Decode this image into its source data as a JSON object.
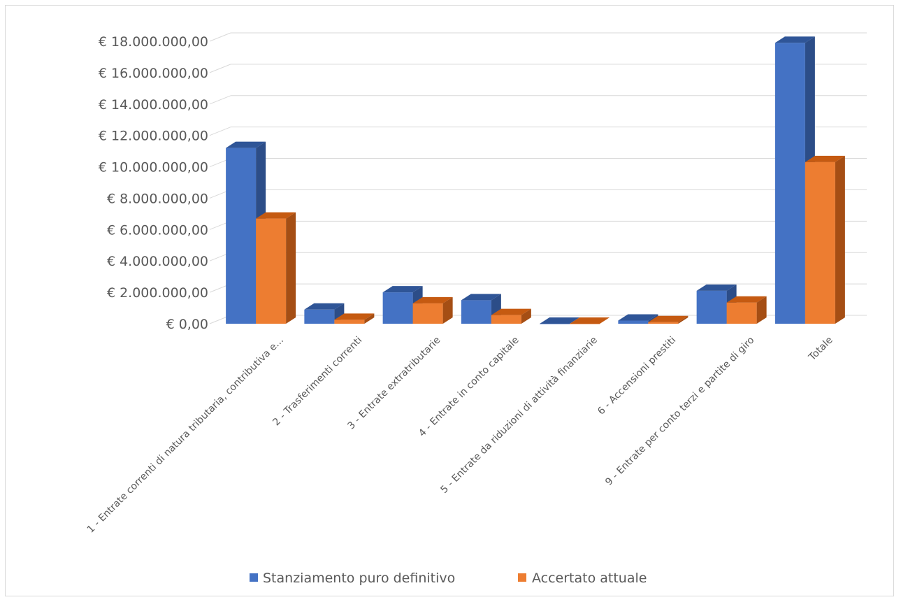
{
  "chart_data": {
    "type": "bar",
    "style": "3d-clustered-column",
    "categories": [
      "1 - Entrate correnti di natura tributaria, contributiva e...",
      "2 - Trasferimenti correnti",
      "3 - Entrate extratributarie",
      "4 - Entrate in conto capitale",
      "5 - Entrate da riduzioni di attività finanziarie",
      "6 - Accensioni prestiti",
      "9 - Entrate per conto terzi e partite di giro",
      "Totale"
    ],
    "series": [
      {
        "name": "Stanziamento puro definitivo",
        "values": [
          11200000,
          900000,
          2000000,
          1500000,
          0,
          200000,
          2100000,
          17900000
        ]
      },
      {
        "name": "Accertato attuale",
        "values": [
          6700000,
          250000,
          1300000,
          550000,
          0,
          100000,
          1350000,
          10300000
        ]
      }
    ],
    "ylim": [
      0,
      18000000
    ],
    "yticks": [
      0,
      2000000,
      4000000,
      6000000,
      8000000,
      10000000,
      12000000,
      14000000,
      16000000,
      18000000
    ],
    "ytick_labels": [
      "€ 0,00",
      "€ 2.000.000,00",
      "€ 4.000.000,00",
      "€ 6.000.000,00",
      "€ 8.000.000,00",
      "€ 10.000.000,00",
      "€ 12.000.000,00",
      "€ 14.000.000,00",
      "€ 16.000.000,00",
      "€ 18.000.000,00"
    ],
    "grid": true,
    "legend_position": "bottom",
    "colors": {
      "series_front": [
        "#4472C4",
        "#ED7D31"
      ],
      "series_top": [
        "#2F5597",
        "#C55A11"
      ],
      "series_side": [
        "#2C4D88",
        "#A54E14"
      ],
      "grid": "#d9d9d9",
      "text": "#595959"
    }
  }
}
